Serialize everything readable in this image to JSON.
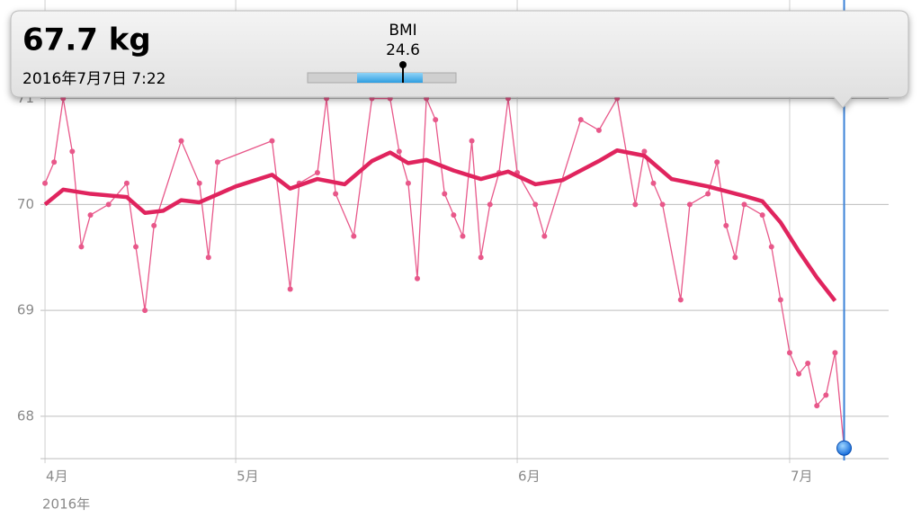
{
  "chart_data": {
    "type": "line",
    "xlim": [
      8.5,
      101.9
    ],
    "xticks": [
      {
        "value": 9,
        "label": "4月"
      },
      {
        "value": 30,
        "label": "5月"
      },
      {
        "value": 61,
        "label": "6月"
      },
      {
        "value": 91,
        "label": "7月"
      }
    ],
    "year_label": "2016年",
    "ylim": [
      67.6,
      71.93
    ],
    "yticks": [
      68,
      69,
      70,
      71
    ],
    "grid": true,
    "series": [
      {
        "name": "weight",
        "color": "#e8588a",
        "x": [
          9,
          10,
          11,
          12,
          13,
          14,
          16,
          18,
          19,
          20,
          21,
          24,
          26,
          27,
          28,
          34,
          36,
          37,
          39,
          40,
          41,
          43,
          45,
          47,
          48,
          49,
          50,
          51,
          52,
          53,
          54,
          55,
          56,
          57,
          58,
          59,
          60,
          61,
          63,
          64,
          68,
          70,
          72,
          74,
          75,
          76,
          77,
          79,
          80,
          82,
          83,
          84,
          85,
          86,
          88,
          89,
          90,
          91,
          92,
          93,
          94,
          95,
          96,
          97
        ],
        "values": [
          70.2,
          70.4,
          71.0,
          70.5,
          69.6,
          69.9,
          70.0,
          70.2,
          69.6,
          69.0,
          69.8,
          70.6,
          70.2,
          69.5,
          70.4,
          70.6,
          69.2,
          70.2,
          70.3,
          71.0,
          70.1,
          69.7,
          71.0,
          71.0,
          70.5,
          70.2,
          69.3,
          71.0,
          70.8,
          70.1,
          69.9,
          69.7,
          70.6,
          69.5,
          70.0,
          70.3,
          71.0,
          70.3,
          70.0,
          69.7,
          70.8,
          70.7,
          71.0,
          70.0,
          70.5,
          70.2,
          70.0,
          69.1,
          70.0,
          70.1,
          70.4,
          69.8,
          69.5,
          70.0,
          69.9,
          69.6,
          69.1,
          68.6,
          68.4,
          68.5,
          68.1,
          68.2,
          68.6,
          67.7
        ]
      },
      {
        "name": "average",
        "color": "#e0245e",
        "x": [
          9,
          11,
          14,
          18,
          20,
          22,
          24,
          26,
          30,
          34,
          36,
          39,
          42,
          45,
          47,
          49,
          51,
          54,
          57,
          60,
          63,
          66,
          70,
          72,
          75,
          78,
          82,
          86,
          88,
          90,
          92,
          94,
          96
        ],
        "values": [
          70.0,
          70.14,
          70.1,
          70.07,
          69.92,
          69.94,
          70.04,
          70.02,
          70.17,
          70.28,
          70.15,
          70.24,
          70.19,
          70.41,
          70.49,
          70.39,
          70.42,
          70.32,
          70.24,
          70.31,
          70.19,
          70.23,
          70.41,
          70.51,
          70.46,
          70.24,
          70.17,
          70.08,
          70.03,
          69.83,
          69.56,
          69.31,
          69.09
        ]
      }
    ],
    "selected": {
      "x": 97,
      "value": 67.7,
      "value_label": "67.7 kg",
      "date": "2016年7月7日 7:22",
      "bmi_label": "BMI",
      "bmi": 24.6
    }
  }
}
